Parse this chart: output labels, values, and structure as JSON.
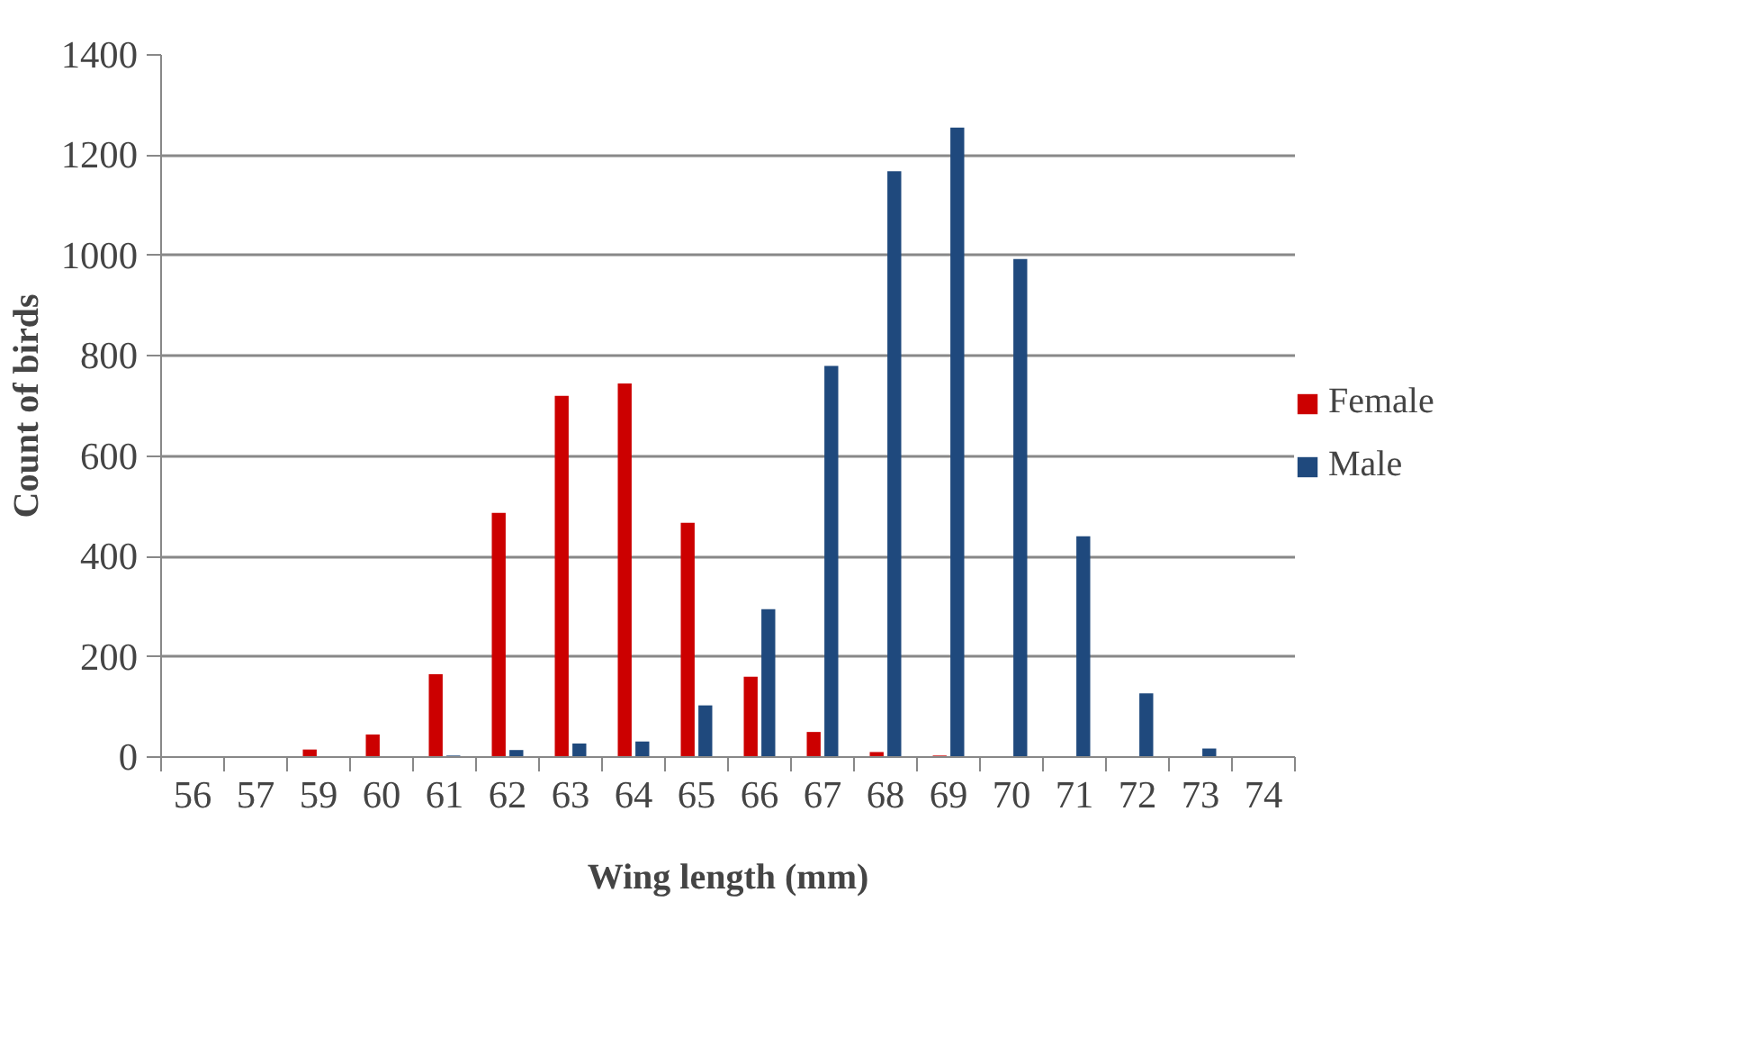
{
  "chart_data": {
    "type": "bar",
    "xlabel": "Wing length (mm)",
    "ylabel": "Count of birds",
    "categories": [
      "56",
      "57",
      "59",
      "60",
      "61",
      "62",
      "63",
      "64",
      "65",
      "66",
      "67",
      "68",
      "69",
      "70",
      "71",
      "72",
      "73",
      "74"
    ],
    "series": [
      {
        "name": "Female",
        "color": "#cc0000",
        "values": [
          0,
          0,
          15,
          45,
          165,
          487,
          720,
          745,
          467,
          160,
          50,
          10,
          3,
          null,
          0,
          0,
          0,
          0
        ]
      },
      {
        "name": "Male",
        "color": "#1f497d",
        "values": [
          0,
          0,
          0,
          0,
          3,
          14,
          27,
          31,
          103,
          295,
          780,
          1168,
          1255,
          993,
          440,
          127,
          17,
          0
        ]
      }
    ],
    "ylim": [
      0,
      1400
    ],
    "yticks": [
      0,
      200,
      400,
      600,
      800,
      1000,
      1200,
      1400
    ],
    "grid": "y",
    "legend": "right"
  }
}
